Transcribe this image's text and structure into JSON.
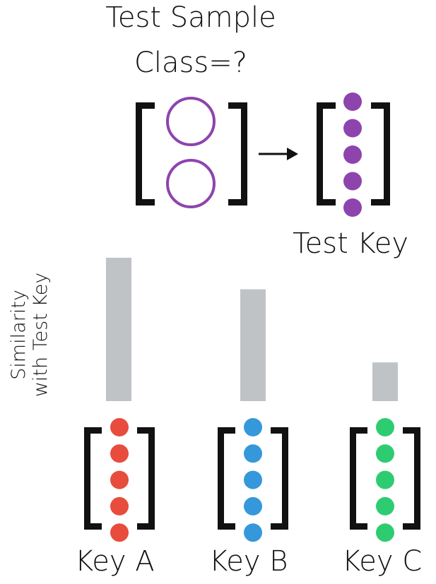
{
  "title": "Test Sample",
  "subtitle": "Class=?",
  "test_key": {
    "label": "Test Key",
    "color": "#8e44ad",
    "dots": 5
  },
  "sample": {
    "circles": 2,
    "color": "#8e44ad"
  },
  "ylabel": "Similarity\nwith Test Key",
  "bar_color": "#c0c3c6",
  "keys": [
    {
      "label": "Key A",
      "color": "#e74c3c",
      "similarity": 1.0
    },
    {
      "label": "Key B",
      "color": "#3498db",
      "similarity": 0.78
    },
    {
      "label": "Key C",
      "color": "#2ecc71",
      "similarity": 0.27
    }
  ]
}
